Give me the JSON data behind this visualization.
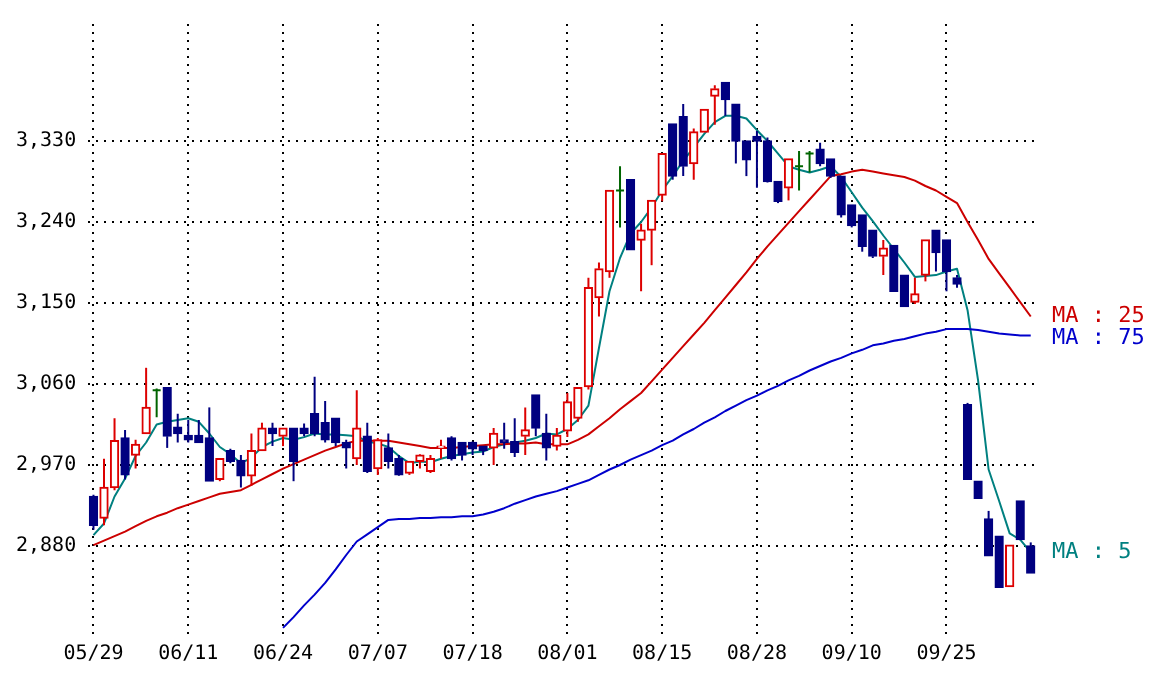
{
  "chart_data": {
    "type": "candlestick",
    "categories": [
      "05/29",
      null,
      null,
      null,
      null,
      null,
      null,
      null,
      null,
      "06/11",
      null,
      null,
      null,
      null,
      null,
      null,
      null,
      null,
      "06/24",
      null,
      null,
      null,
      null,
      null,
      null,
      null,
      null,
      "07/07",
      null,
      null,
      null,
      null,
      null,
      null,
      null,
      null,
      "07/18",
      null,
      null,
      null,
      null,
      null,
      null,
      null,
      null,
      "08/01",
      null,
      null,
      null,
      null,
      null,
      null,
      null,
      null,
      "08/15",
      null,
      null,
      null,
      null,
      null,
      null,
      null,
      null,
      "08/28",
      null,
      null,
      null,
      null,
      null,
      null,
      null,
      null,
      "09/10",
      null,
      null,
      null,
      null,
      null,
      null,
      null,
      null,
      "09/25",
      null,
      null,
      null,
      null,
      null,
      null,
      null,
      null
    ],
    "ohlc": [
      [
        2935,
        2937,
        2898,
        2903
      ],
      [
        2911,
        2977,
        2903,
        2945
      ],
      [
        2945,
        3022,
        2942,
        2997
      ],
      [
        3000,
        3009,
        2954,
        2959
      ],
      [
        2981,
        2998,
        2966,
        2993
      ],
      [
        3005,
        3078,
        3005,
        3034
      ],
      [
        3053,
        3055,
        3023,
        3053
      ],
      [
        3056,
        3056,
        2989,
        3002
      ],
      [
        3012,
        3027,
        2995,
        3005
      ],
      [
        3003,
        3020,
        2995,
        2998
      ],
      [
        3003,
        3020,
        2995,
        2995
      ],
      [
        3000,
        3034,
        2952,
        2952
      ],
      [
        2954,
        2977,
        2952,
        2977
      ],
      [
        2986,
        2988,
        2972,
        2974
      ],
      [
        2975,
        2981,
        2945,
        2958
      ],
      [
        2958,
        3005,
        2947,
        2986
      ],
      [
        2986,
        3017,
        2986,
        3011
      ],
      [
        3011,
        3017,
        2991,
        3005
      ],
      [
        3002,
        3011,
        2991,
        3011
      ],
      [
        3011,
        3011,
        2952,
        2974
      ],
      [
        3011,
        3016,
        3002,
        3005
      ],
      [
        3027,
        3068,
        3002,
        3005
      ],
      [
        3017,
        3041,
        2995,
        2998
      ],
      [
        3022,
        3022,
        2991,
        2995
      ],
      [
        2995,
        2998,
        2966,
        2989
      ],
      [
        2977,
        3053,
        2970,
        3011
      ],
      [
        3002,
        3017,
        2961,
        2963
      ],
      [
        2966,
        3000,
        2959,
        2998
      ],
      [
        2989,
        3005,
        2966,
        2974
      ],
      [
        2977,
        2981,
        2958,
        2959
      ],
      [
        2961,
        2974,
        2959,
        2974
      ],
      [
        2974,
        2982,
        2966,
        2981
      ],
      [
        2963,
        2981,
        2961,
        2977
      ],
      [
        2989,
        2998,
        2977,
        2991
      ],
      [
        3000,
        3002,
        2975,
        2977
      ],
      [
        2995,
        2995,
        2975,
        2981
      ],
      [
        2995,
        2996,
        2981,
        2988
      ],
      [
        2991,
        2991,
        2981,
        2986
      ],
      [
        2989,
        3011,
        2970,
        3005
      ],
      [
        2998,
        3017,
        2988,
        2995
      ],
      [
        2996,
        3022,
        2979,
        2984
      ],
      [
        3002,
        3034,
        2981,
        3009
      ],
      [
        3048,
        3048,
        3002,
        3011
      ],
      [
        3005,
        3027,
        2975,
        2989
      ],
      [
        2991,
        3011,
        2986,
        3003
      ],
      [
        3008,
        3050,
        3001,
        3040
      ],
      [
        3022,
        3056,
        3018,
        3056
      ],
      [
        3057,
        3178,
        3054,
        3167
      ],
      [
        3156,
        3195,
        3135,
        3188
      ],
      [
        3185,
        3275,
        3178,
        3275
      ],
      [
        3275,
        3302,
        3234,
        3275
      ],
      [
        3287,
        3287,
        3209,
        3209
      ],
      [
        3220,
        3238,
        3163,
        3231
      ],
      [
        3231,
        3264,
        3192,
        3264
      ],
      [
        3270,
        3316,
        3263,
        3316
      ],
      [
        3349,
        3349,
        3287,
        3291
      ],
      [
        3357,
        3371,
        3291,
        3302
      ],
      [
        3305,
        3344,
        3287,
        3340
      ],
      [
        3340,
        3365,
        3340,
        3365
      ],
      [
        3380,
        3392,
        3348,
        3388
      ],
      [
        3395,
        3395,
        3358,
        3376
      ],
      [
        3371,
        3371,
        3305,
        3330
      ],
      [
        3330,
        3330,
        3291,
        3309
      ],
      [
        3335,
        3341,
        3278,
        3330
      ],
      [
        3330,
        3334,
        3284,
        3285
      ],
      [
        3285,
        3285,
        3261,
        3263
      ],
      [
        3278,
        3310,
        3264,
        3310
      ],
      [
        3302,
        3319,
        3275,
        3302
      ],
      [
        3316,
        3319,
        3295,
        3316
      ],
      [
        3321,
        3328,
        3302,
        3305
      ],
      [
        3310,
        3310,
        3289,
        3291
      ],
      [
        3291,
        3291,
        3245,
        3248
      ],
      [
        3259,
        3259,
        3234,
        3236
      ],
      [
        3248,
        3248,
        3207,
        3213
      ],
      [
        3231,
        3231,
        3200,
        3202
      ],
      [
        3202,
        3220,
        3181,
        3211
      ],
      [
        3214,
        3214,
        3163,
        3163
      ],
      [
        3181,
        3181,
        3146,
        3146
      ],
      [
        3151,
        3178,
        3149,
        3160
      ],
      [
        3181,
        3220,
        3174,
        3220
      ],
      [
        3231,
        3231,
        3185,
        3206
      ],
      [
        3220,
        3220,
        3163,
        3185
      ],
      [
        3178,
        3181,
        3167,
        3171
      ],
      [
        3037,
        3039,
        2954,
        2954
      ],
      [
        2952,
        2952,
        2933,
        2933
      ],
      [
        2910,
        2919,
        2869,
        2869
      ],
      [
        2891,
        2891,
        2834,
        2834
      ],
      [
        2835,
        2881,
        2835,
        2881
      ],
      [
        2930,
        2930,
        2887,
        2887
      ],
      [
        2880,
        2884,
        2850,
        2850
      ]
    ],
    "colors": [
      "#000080",
      "#dd0000",
      "#dd0000",
      "#000080",
      "#dd0000",
      "#dd0000",
      "#006400",
      "#000080",
      "#000080",
      "#000080",
      "#000080",
      "#000080",
      "#dd0000",
      "#000080",
      "#000080",
      "#dd0000",
      "#dd0000",
      "#000080",
      "#dd0000",
      "#000080",
      "#000080",
      "#000080",
      "#000080",
      "#000080",
      "#000080",
      "#dd0000",
      "#000080",
      "#dd0000",
      "#000080",
      "#000080",
      "#dd0000",
      "#dd0000",
      "#dd0000",
      "#dd0000",
      "#000080",
      "#000080",
      "#000080",
      "#000080",
      "#dd0000",
      "#000080",
      "#000080",
      "#dd0000",
      "#000080",
      "#000080",
      "#dd0000",
      "#dd0000",
      "#dd0000",
      "#dd0000",
      "#dd0000",
      "#dd0000",
      "#006400",
      "#000080",
      "#dd0000",
      "#dd0000",
      "#dd0000",
      "#000080",
      "#000080",
      "#dd0000",
      "#dd0000",
      "#dd0000",
      "#000080",
      "#000080",
      "#000080",
      "#000080",
      "#000080",
      "#000080",
      "#dd0000",
      "#006400",
      "#006400",
      "#000080",
      "#000080",
      "#000080",
      "#000080",
      "#000080",
      "#000080",
      "#dd0000",
      "#000080",
      "#000080",
      "#dd0000",
      "#dd0000",
      "#000080",
      "#000080",
      "#000080",
      "#000080",
      "#000080",
      "#000080",
      "#000080",
      "#dd0000",
      "#000080",
      "#000080"
    ],
    "series": [
      {
        "name": "MA : 25",
        "type": "line",
        "color": "#cc0000",
        "values": [
          2881,
          2886,
          2891,
          2896,
          2902,
          2908,
          2913,
          2917,
          2922,
          2926,
          2930,
          2934,
          2938,
          2940,
          2942,
          2948,
          2954,
          2960,
          2966,
          2971,
          2976,
          2981,
          2986,
          2990,
          2994,
          2997,
          2997,
          2997,
          2997,
          2995,
          2993,
          2991,
          2989,
          2989,
          2989,
          2990,
          2991,
          2992,
          2993,
          2993,
          2994,
          2994,
          2995,
          2993,
          2993,
          2993,
          2998,
          3004,
          3013,
          3022,
          3032,
          3041,
          3050,
          3063,
          3076,
          3089,
          3102,
          3115,
          3128,
          3142,
          3156,
          3170,
          3184,
          3199,
          3213,
          3226,
          3239,
          3252,
          3265,
          3278,
          3291,
          3293,
          3296,
          3298,
          3296,
          3294,
          3292,
          3290,
          3286,
          3280,
          3275,
          3268,
          3261,
          3240,
          3220,
          3199,
          3183,
          3167,
          3151,
          3135
        ]
      },
      {
        "name": "MA : 75",
        "type": "line",
        "color": "#0000cc",
        "values": [
          null,
          null,
          null,
          null,
          null,
          null,
          null,
          null,
          null,
          null,
          null,
          null,
          null,
          null,
          null,
          null,
          null,
          null,
          2789,
          2801,
          2814,
          2826,
          2839,
          2854,
          2870,
          2885,
          2893,
          2901,
          2909,
          2910,
          2910,
          2911,
          2911,
          2912,
          2912,
          2913,
          2913,
          2915,
          2918,
          2922,
          2927,
          2931,
          2935,
          2938,
          2941,
          2945,
          2949,
          2953,
          2959,
          2965,
          2970,
          2976,
          2981,
          2986,
          2992,
          2997,
          3004,
          3010,
          3017,
          3023,
          3030,
          3036,
          3042,
          3047,
          3053,
          3058,
          3064,
          3069,
          3075,
          3080,
          3085,
          3089,
          3094,
          3098,
          3103,
          3105,
          3108,
          3110,
          3113,
          3116,
          3118,
          3121,
          3121,
          3121,
          3120,
          3118,
          3116,
          3115,
          3114,
          3114
        ]
      },
      {
        "name": "MA : 5",
        "type": "line",
        "color": "#008080",
        "values": [
          2892,
          2905,
          2935,
          2955,
          2980,
          2995,
          3015,
          3018,
          3020,
          3022,
          3018,
          3005,
          2990,
          2982,
          2972,
          2978,
          2990,
          2996,
          3000,
          2998,
          3001,
          3005,
          3004,
          3004,
          3003,
          3002,
          2996,
          2994,
          2990,
          2980,
          2972,
          2974,
          2973,
          2977,
          2980,
          2982,
          2984,
          2985,
          2990,
          2993,
          2995,
          2997,
          3000,
          3005,
          3004,
          3010,
          3020,
          3036,
          3100,
          3163,
          3200,
          3227,
          3240,
          3256,
          3275,
          3291,
          3308,
          3323,
          3338,
          3351,
          3358,
          3358,
          3355,
          3342,
          3330,
          3316,
          3302,
          3298,
          3295,
          3298,
          3302,
          3290,
          3273,
          3256,
          3241,
          3225,
          3210,
          3195,
          3179,
          3180,
          3181,
          3185,
          3188,
          3142,
          3064,
          2965,
          2930,
          2894,
          2887,
          2873
        ]
      }
    ],
    "ylim": [
      2780,
      3460
    ],
    "yticks": [
      {
        "value": 2880,
        "label": "2,880"
      },
      {
        "value": 2970,
        "label": "2,970"
      },
      {
        "value": 3060,
        "label": "3,060"
      },
      {
        "value": 3150,
        "label": "3,150"
      },
      {
        "value": 3240,
        "label": "3,240"
      },
      {
        "value": 3330,
        "label": "3,330"
      }
    ],
    "grid": true,
    "legend": false
  }
}
